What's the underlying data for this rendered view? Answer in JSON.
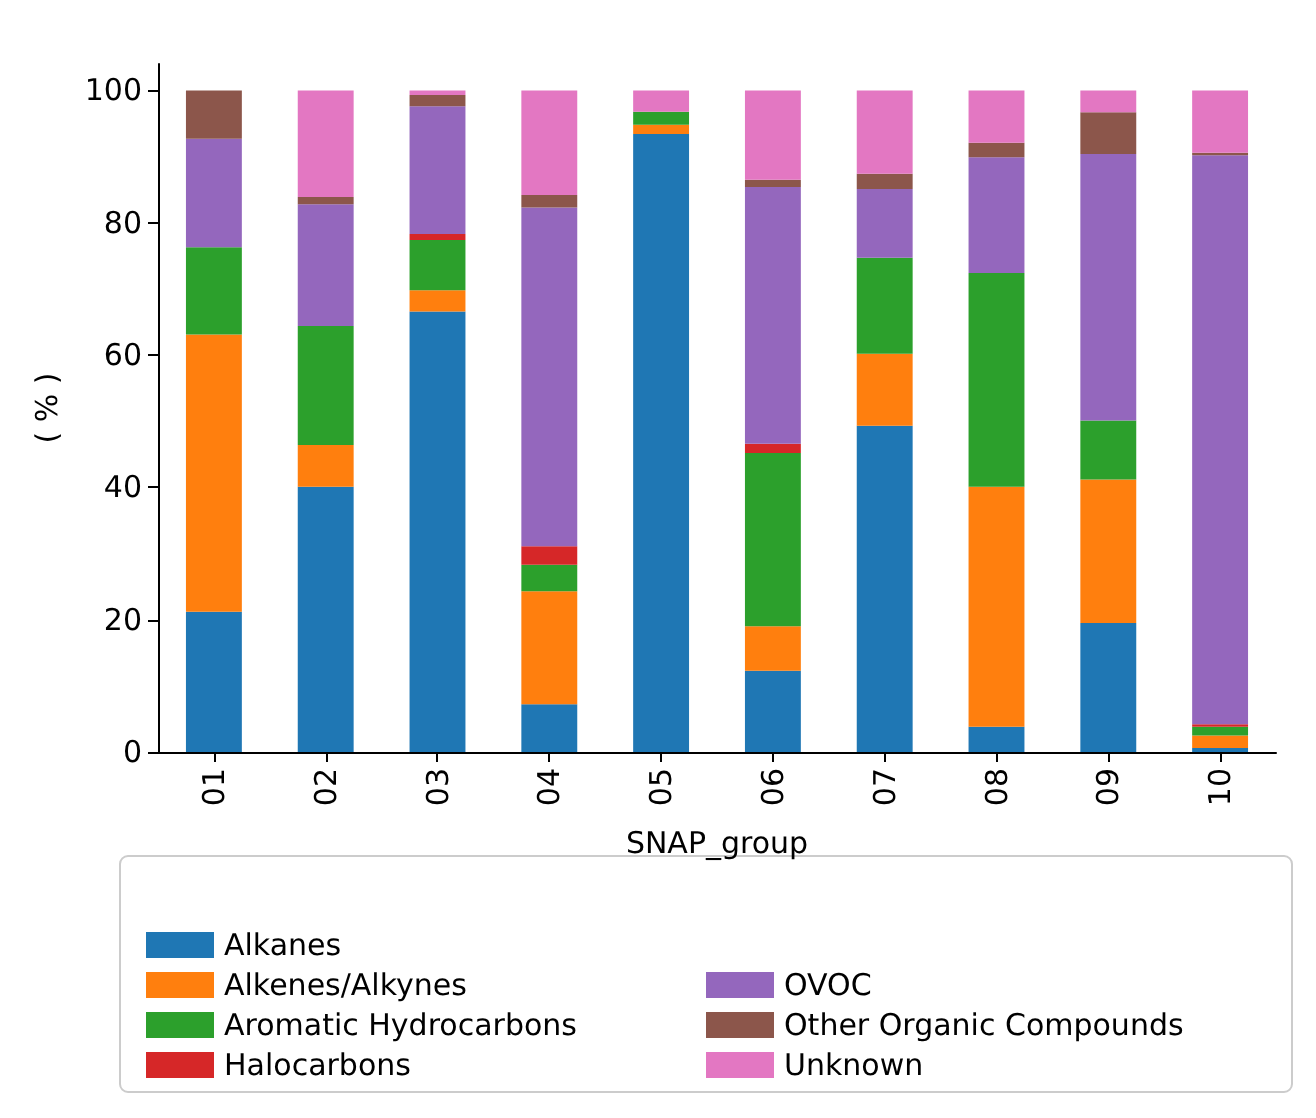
{
  "chart_data": {
    "type": "bar",
    "stacked": true,
    "xlabel": "SNAP_group",
    "ylabel": "( % )",
    "categories": [
      "01",
      "02",
      "03",
      "04",
      "05",
      "06",
      "07",
      "08",
      "09",
      "10"
    ],
    "ylim": [
      0,
      104
    ],
    "yticks": [
      0,
      20,
      40,
      60,
      80,
      100
    ],
    "grid": false,
    "legend": "bottom",
    "series": [
      {
        "name": "Alkanes",
        "color": "#1f77b4",
        "values": [
          21.2,
          40.1,
          66.6,
          7.2,
          93.4,
          12.3,
          49.3,
          3.8,
          19.5,
          0.6
        ]
      },
      {
        "name": "Alkenes/Alkynes",
        "color": "#ff7f0e",
        "values": [
          41.9,
          6.3,
          3.2,
          17.1,
          1.4,
          6.7,
          10.9,
          36.3,
          21.7,
          1.9
        ]
      },
      {
        "name": "Aromatic Hydrocarbons",
        "color": "#2ca02c",
        "values": [
          13.2,
          18.0,
          7.6,
          4.0,
          2.0,
          26.2,
          14.5,
          32.3,
          8.9,
          1.3
        ]
      },
      {
        "name": "Halocarbons",
        "color": "#d62728",
        "values": [
          0,
          0,
          0.9,
          2.8,
          0,
          1.4,
          0,
          0,
          0,
          0.4
        ]
      },
      {
        "name": "OVOC",
        "color": "#9467bd",
        "values": [
          16.4,
          18.4,
          19.3,
          51.2,
          0,
          38.8,
          10.4,
          17.5,
          40.3,
          86.0
        ]
      },
      {
        "name": "Other Organic Compounds",
        "color": "#8c564b",
        "values": [
          7.3,
          1.1,
          1.7,
          1.9,
          0,
          1.1,
          2.3,
          2.2,
          6.3,
          0.4
        ]
      },
      {
        "name": "Unknown",
        "color": "#e377c2",
        "values": [
          0,
          16.1,
          0.7,
          15.8,
          3.2,
          13.5,
          12.6,
          7.9,
          3.3,
          9.4
        ]
      }
    ]
  }
}
